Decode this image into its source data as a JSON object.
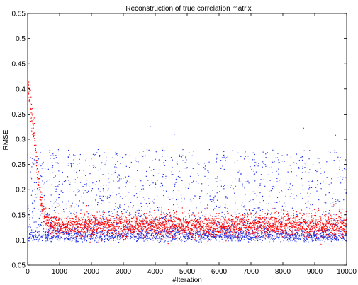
{
  "chart_data": {
    "type": "scatter",
    "title": "Reconstruction of true correlation matrix",
    "xlabel": "#Iteration",
    "ylabel": "RMSE",
    "xlim": [
      0,
      10000
    ],
    "ylim": [
      0.05,
      0.55
    ],
    "xticks": [
      "0",
      "1000",
      "2000",
      "3000",
      "4000",
      "5000",
      "6000",
      "7000",
      "8000",
      "9000",
      "10000"
    ],
    "yticks": [
      "0.05",
      "0.1",
      "0.15",
      "0.2",
      "0.25",
      "0.3",
      "0.35",
      "0.4",
      "0.45",
      "0.5",
      "0.55"
    ],
    "grid": false,
    "series": [
      {
        "color": "#1f2fe6",
        "points_per_series": 3000,
        "description_values": {
          "dense_band": [
            0.09,
            0.13
          ],
          "sparse_upper_band": [
            0.13,
            0.28
          ],
          "outliers": [
            [
              3850,
              0.325
            ],
            [
              8650,
              0.322
            ],
            [
              4600,
              0.31
            ],
            [
              9650,
              0.308
            ]
          ]
        }
      },
      {
        "color": "#ff0000",
        "points_per_series": 3000,
        "initial_segment": [
          [
            0,
            0.41
          ],
          [
            100,
            0.37
          ],
          [
            200,
            0.31
          ],
          [
            300,
            0.24
          ],
          [
            400,
            0.19
          ],
          [
            500,
            0.15
          ],
          [
            700,
            0.13
          ]
        ],
        "steady_band": [
          0.105,
          0.16
        ]
      }
    ]
  }
}
